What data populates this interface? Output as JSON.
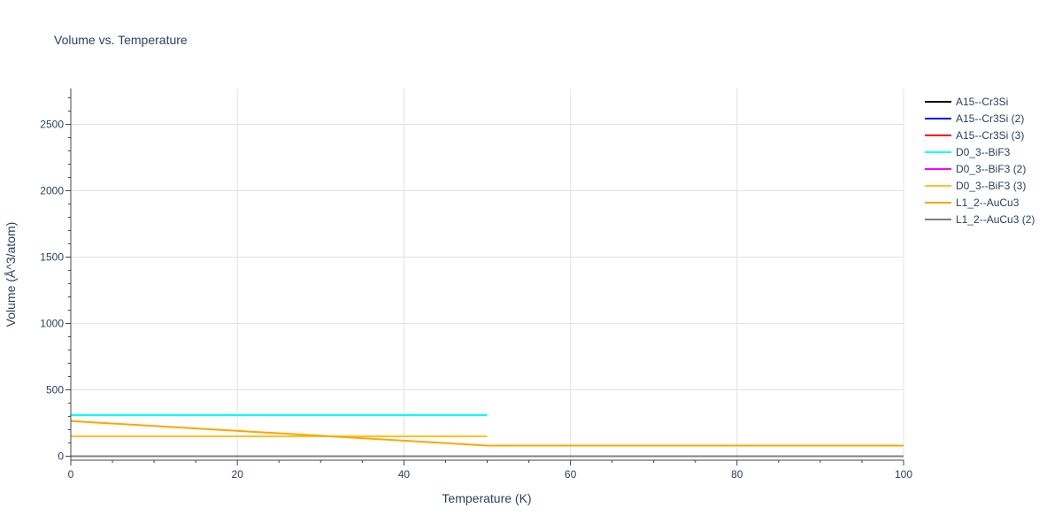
{
  "chart_data": {
    "type": "line",
    "title": "Volume vs. Temperature",
    "xlabel": "Temperature (K)",
    "ylabel": "Volume (Å^3/atom)",
    "xlim": [
      0,
      100
    ],
    "ylim": [
      -30,
      2770
    ],
    "xticks": [
      0,
      20,
      40,
      60,
      80,
      100
    ],
    "yticks": [
      0,
      500,
      1000,
      1500,
      2000,
      2500
    ],
    "grid": true,
    "legend_position": "right",
    "series": [
      {
        "name": "A15--Cr3Si",
        "color": "#000000",
        "x": [
          0,
          50
        ],
        "y": [
          150,
          150
        ]
      },
      {
        "name": "A15--Cr3Si (2)",
        "color": "#0000ff",
        "x": [
          0,
          50
        ],
        "y": [
          150,
          150
        ]
      },
      {
        "name": "A15--Cr3Si (3)",
        "color": "#ff0000",
        "x": [
          0,
          50
        ],
        "y": [
          150,
          150
        ]
      },
      {
        "name": "D0_3--BiF3",
        "color": "#00ffff",
        "x": [
          0,
          50
        ],
        "y": [
          310,
          310
        ]
      },
      {
        "name": "D0_3--BiF3 (2)",
        "color": "#ff00ff",
        "x": [
          0,
          50
        ],
        "y": [
          150,
          150
        ]
      },
      {
        "name": "D0_3--BiF3 (3)",
        "color": "#ffc125",
        "x": [
          0,
          50
        ],
        "y": [
          150,
          150
        ]
      },
      {
        "name": "L1_2--AuCu3",
        "color": "#ffa500",
        "x": [
          0,
          50,
          100
        ],
        "y": [
          265,
          80,
          80
        ]
      },
      {
        "name": "L1_2--AuCu3 (2)",
        "color": "#808080",
        "x": [
          0,
          100
        ],
        "y": [
          0,
          0
        ]
      }
    ]
  }
}
